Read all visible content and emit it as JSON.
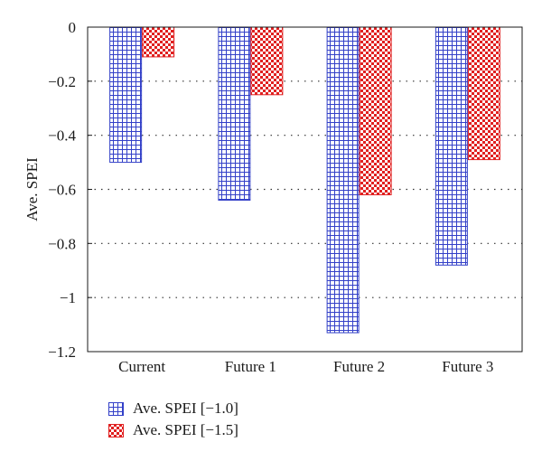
{
  "chart_data": {
    "type": "bar",
    "categories": [
      "Current",
      "Future 1",
      "Future 2",
      "Future 3"
    ],
    "series": [
      {
        "name": "Ave. SPEI [−1.0]",
        "values": [
          -0.5,
          -0.64,
          -1.13,
          -0.88
        ],
        "color": "#3340c8",
        "pattern": "grid"
      },
      {
        "name": "Ave. SPEI [−1.5]",
        "values": [
          -0.11,
          -0.25,
          -0.62,
          -0.49
        ],
        "color": "#e02020",
        "pattern": "checker"
      }
    ],
    "ylabel": "Ave. SPEI",
    "ylim": [
      -1.2,
      0
    ],
    "yticks": [
      0,
      -0.2,
      -0.4,
      -0.6,
      -0.8,
      -1,
      -1.2
    ],
    "ytick_labels": [
      "0",
      "−0.2",
      "−0.4",
      "−0.6",
      "−0.8",
      "−1",
      "−1.2"
    ],
    "grid": "horizontal dotted",
    "legend_position": "bottom-left"
  }
}
